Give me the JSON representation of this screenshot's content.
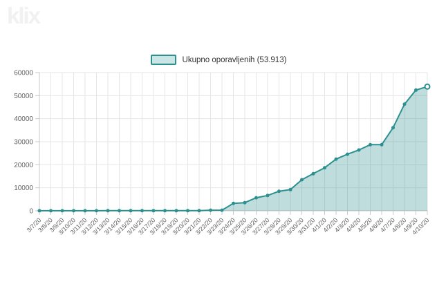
{
  "logo": {
    "text": "klix"
  },
  "legend": {
    "label": "Ukupno oporavljenih (53.913)"
  },
  "chart_data": {
    "type": "area",
    "title": "",
    "series_name": "Ukupno oporavljenih",
    "series_total_label": "53.913",
    "categories": [
      "3/7/20",
      "3/8/20",
      "3/9/20",
      "3/10/20",
      "3/11/20",
      "3/12/20",
      "3/13/20",
      "3/14/20",
      "3/15/20",
      "3/16/20",
      "3/17/20",
      "3/18/20",
      "3/19/20",
      "3/20/20",
      "3/21/20",
      "3/22/20",
      "3/23/20",
      "3/24/20",
      "3/25/20",
      "3/26/20",
      "3/27/20",
      "3/28/20",
      "3/29/20",
      "3/30/20",
      "3/31/20",
      "4/1/20",
      "4/2/20",
      "4/3/20",
      "4/4/20",
      "4/5/20",
      "4/6/20",
      "4/7/20",
      "4/8/20",
      "4/9/20",
      "4/10/20"
    ],
    "values": [
      18,
      18,
      18,
      18,
      18,
      18,
      46,
      46,
      46,
      46,
      67,
      67,
      67,
      67,
      67,
      266,
      266,
      3243,
      3547,
      5673,
      6658,
      8481,
      9211,
      13500,
      16100,
      18700,
      22440,
      24575,
      26400,
      28700,
      28700,
      36081,
      46300,
      52407,
      53913
    ],
    "xlabel": "",
    "ylabel": "",
    "ylim": [
      0,
      60000
    ],
    "yticks": [
      0,
      10000,
      20000,
      30000,
      40000,
      50000,
      60000
    ],
    "ytick_labels": [
      "0",
      "10000",
      "20000",
      "30000",
      "40000",
      "50000",
      "60000"
    ],
    "grid": true,
    "legend_position": "top-center",
    "colors": {
      "series": "#2b908f",
      "fill": "rgba(43,144,143,0.30)",
      "grid": "#e6e6e6",
      "axis": "#c9c9c9",
      "label": "#606060",
      "legend_text": "#333333",
      "legend_swatch_fill": "#c9e5e4",
      "logo": "#f1f1f1",
      "background": "#ffffff"
    }
  }
}
